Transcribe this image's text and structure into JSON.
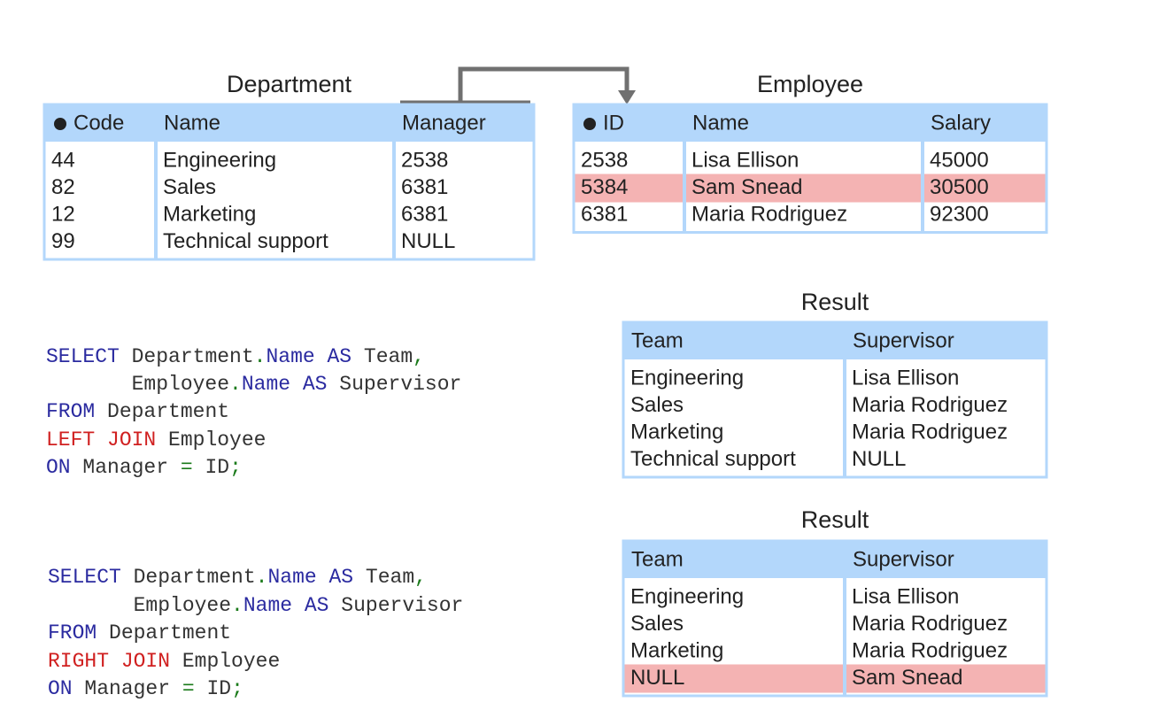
{
  "department": {
    "title": "Department",
    "headers": [
      "Code",
      "Name",
      "Manager"
    ],
    "rows": [
      [
        "44",
        "Engineering",
        "2538"
      ],
      [
        "82",
        "Sales",
        "6381"
      ],
      [
        "12",
        "Marketing",
        "6381"
      ],
      [
        "99",
        "Technical support",
        "NULL"
      ]
    ]
  },
  "employee": {
    "title": "Employee",
    "headers": [
      "ID",
      "Name",
      "Salary"
    ],
    "rows": [
      [
        "2538",
        "Lisa Ellison",
        "45000"
      ],
      [
        "5384",
        "Sam Snead",
        "30500"
      ],
      [
        "6381",
        "Maria Rodriguez",
        "92300"
      ]
    ]
  },
  "queries": [
    {
      "lines": [
        [
          "SELECT",
          " Department",
          ".",
          "Name",
          " AS",
          " Team",
          ","
        ],
        [
          "       Employee",
          ".",
          "Name",
          " AS",
          " Supervisor"
        ],
        [
          "FROM",
          " Department"
        ],
        [
          "LEFT JOIN",
          " Employee"
        ],
        [
          "ON",
          " Manager",
          " =",
          " ID",
          ";"
        ]
      ]
    },
    {
      "lines": [
        [
          "SELECT",
          " Department",
          ".",
          "Name",
          " AS",
          " Team",
          ","
        ],
        [
          "       Employee",
          ".",
          "Name",
          " AS",
          " Supervisor"
        ],
        [
          "FROM",
          " Department"
        ],
        [
          "RIGHT JOIN",
          " Employee"
        ],
        [
          "ON",
          " Manager",
          " =",
          " ID",
          ";"
        ]
      ]
    }
  ],
  "results": [
    {
      "title": "Result",
      "headers": [
        "Team",
        "Supervisor"
      ],
      "rows": [
        [
          "Engineering",
          "Lisa Ellison"
        ],
        [
          "Sales",
          "Maria Rodriguez"
        ],
        [
          "Marketing",
          "Maria Rodriguez"
        ],
        [
          "Technical support",
          "NULL"
        ]
      ]
    },
    {
      "title": "Result",
      "headers": [
        "Team",
        "Supervisor"
      ],
      "rows": [
        [
          "Engineering",
          "Lisa Ellison"
        ],
        [
          "Sales",
          "Maria Rodriguez"
        ],
        [
          "Marketing",
          "Maria Rodriguez"
        ],
        [
          "NULL",
          "Sam Snead"
        ]
      ]
    }
  ]
}
